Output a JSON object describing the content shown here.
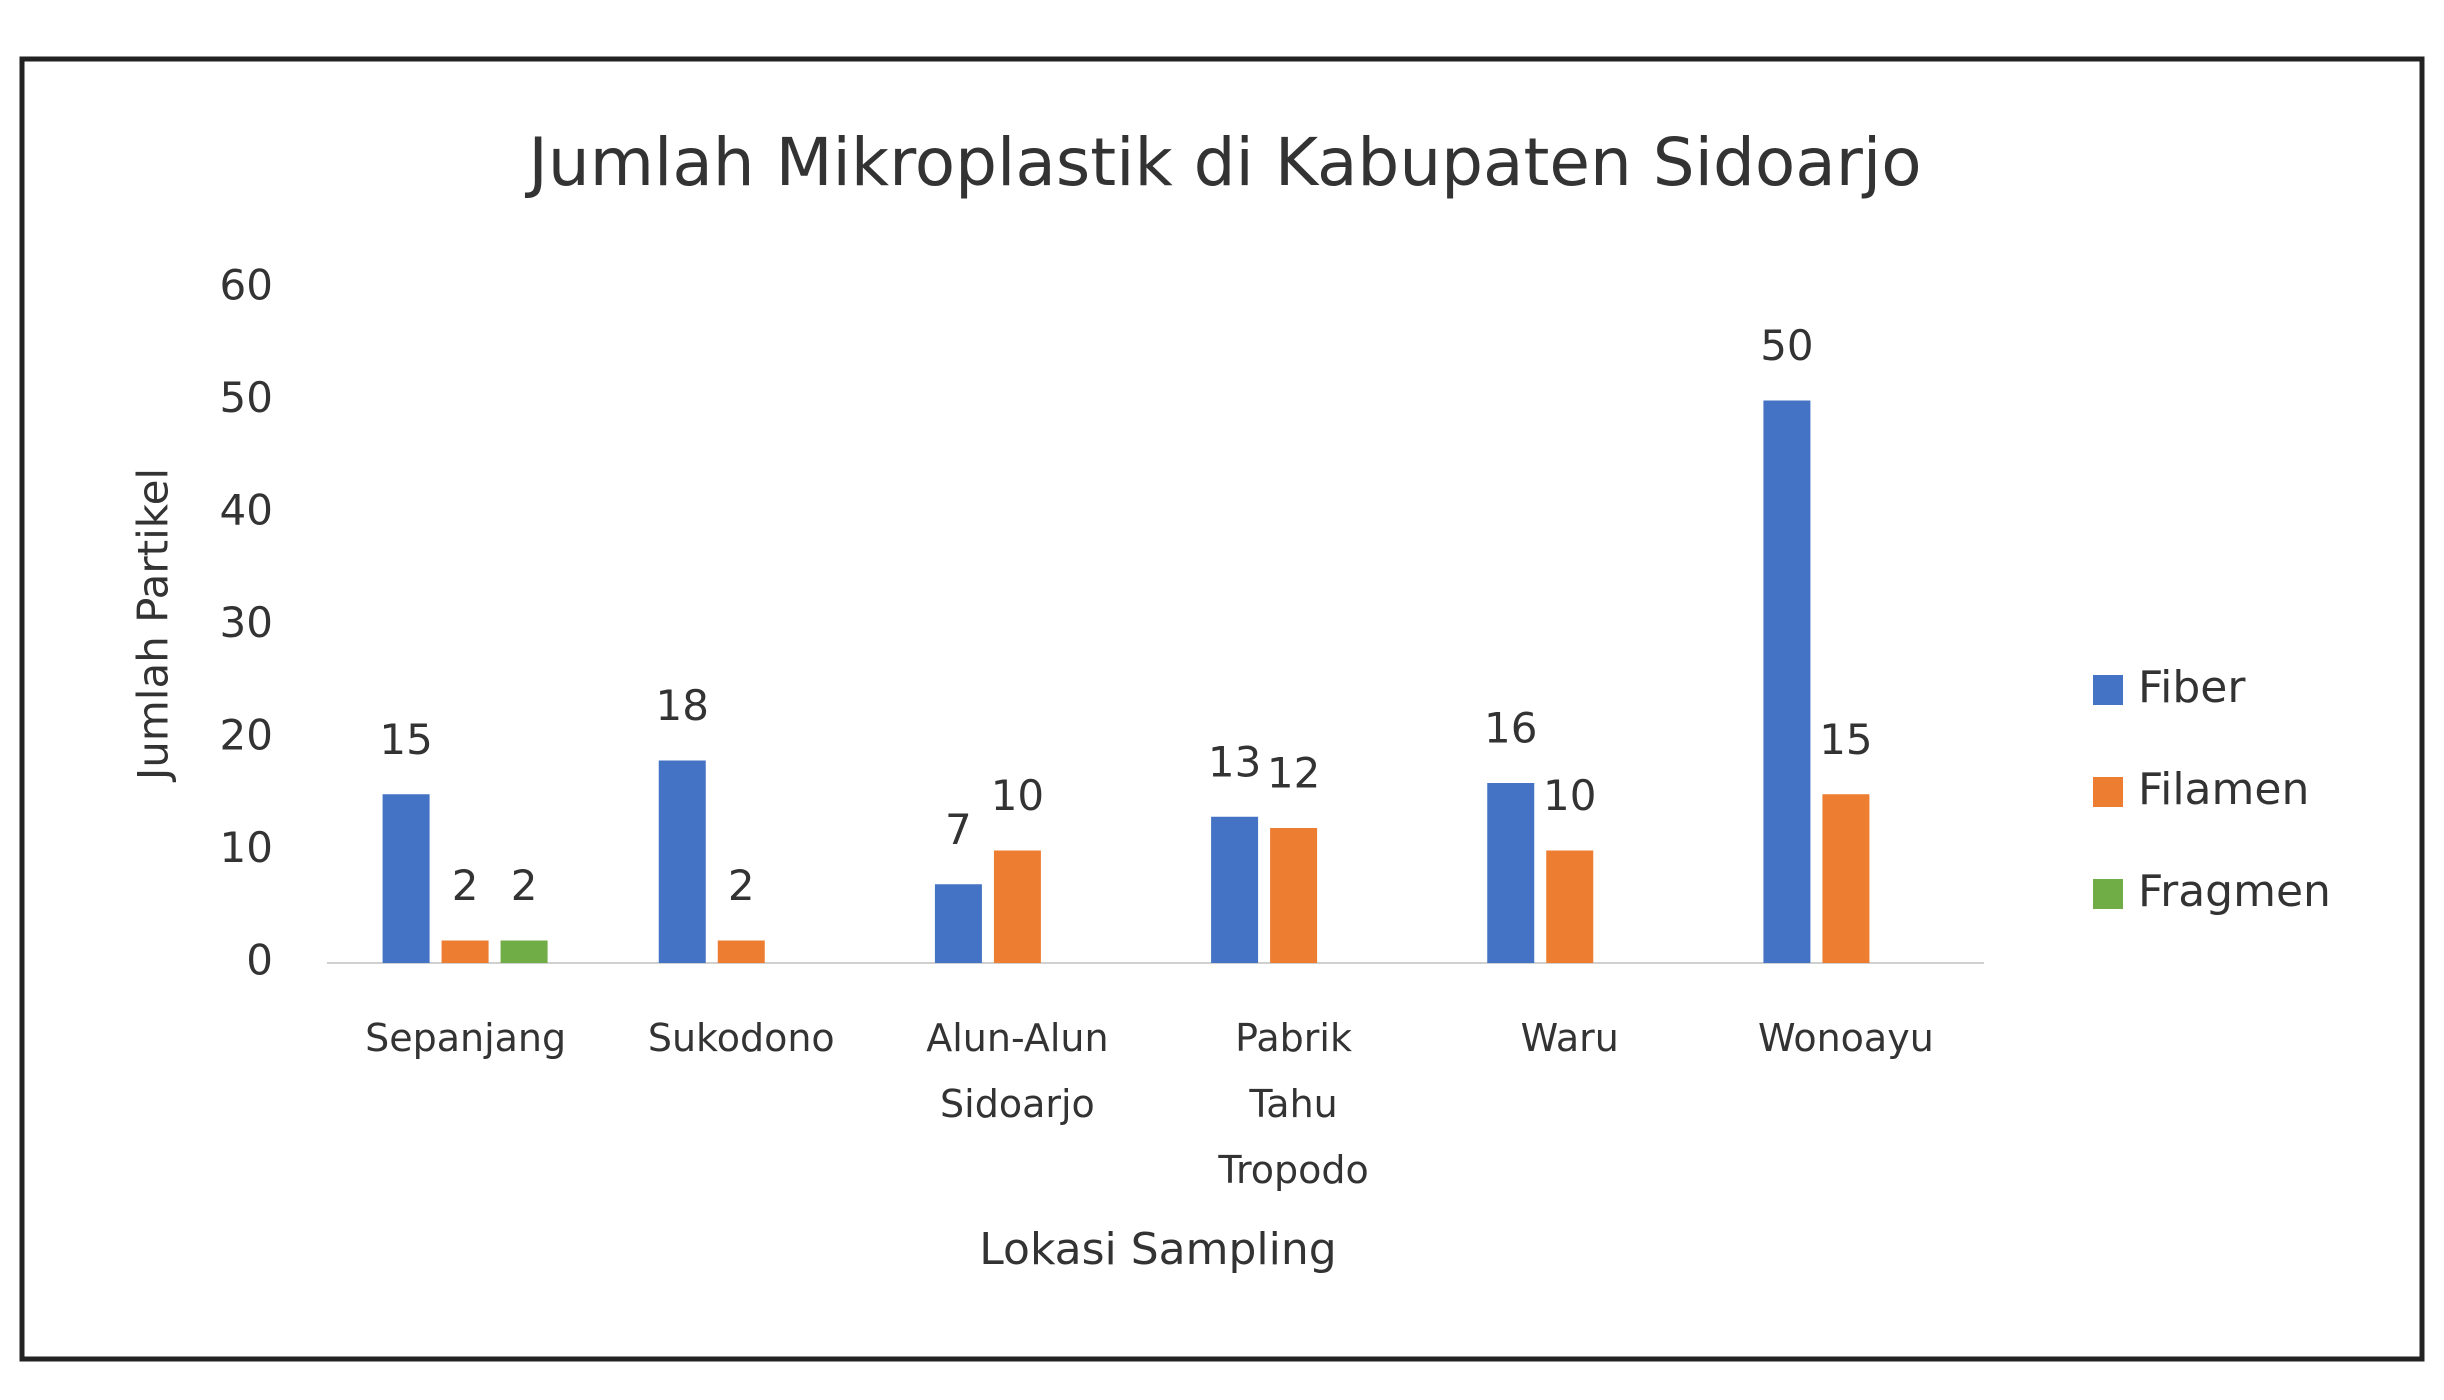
{
  "chart_data": {
    "type": "bar",
    "title": "Jumlah Mikroplastik di Kabupaten Sidoarjo",
    "x_label": "Lokasi Sampling",
    "y_label": "Jumlah Partikel",
    "categories": [
      "Sepanjang",
      "Sukodono",
      "Alun-Alun Sidoarjo",
      "Pabrik Tahu Tropodo",
      "Waru",
      "Wonoayu"
    ],
    "series": [
      {
        "name": "Fiber",
        "color": "#4472c4",
        "values": [
          15,
          18,
          7,
          13,
          16,
          50
        ]
      },
      {
        "name": "Filamen",
        "color": "#ed7d31",
        "values": [
          2,
          2,
          10,
          12,
          10,
          15
        ]
      },
      {
        "name": "Fragmen",
        "color": "#70ad47",
        "values": [
          2,
          null,
          null,
          null,
          null,
          null
        ]
      }
    ],
    "ylim": [
      0,
      60
    ],
    "yticks": [
      0,
      10,
      20,
      30,
      40,
      50,
      60
    ],
    "grid": false,
    "legend": "right"
  }
}
